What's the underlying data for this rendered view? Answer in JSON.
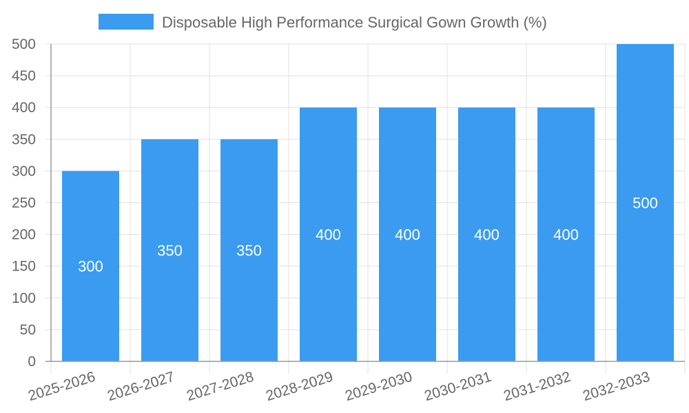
{
  "chart_data": {
    "type": "bar",
    "categories": [
      "2025-2026",
      "2026-2027",
      "2027-2028",
      "2028-2029",
      "2029-2030",
      "2030-2031",
      "2031-2032",
      "2032-2033"
    ],
    "series": [
      {
        "name": "Disposable High Performance Surgical Gown Growth (%)",
        "values": [
          300,
          350,
          350,
          400,
          400,
          400,
          400,
          500
        ]
      }
    ],
    "ylim": [
      0,
      500
    ],
    "yticks": [
      0,
      50,
      100,
      150,
      200,
      250,
      300,
      350,
      400,
      450,
      500
    ],
    "grid": true,
    "legend_position": "top-center",
    "data_labels": true,
    "colors": {
      "bar": "#3a9bf0",
      "grid": "#e0e0e0",
      "axis": "#999999",
      "text": "#666666",
      "label": "#ffffff"
    }
  }
}
